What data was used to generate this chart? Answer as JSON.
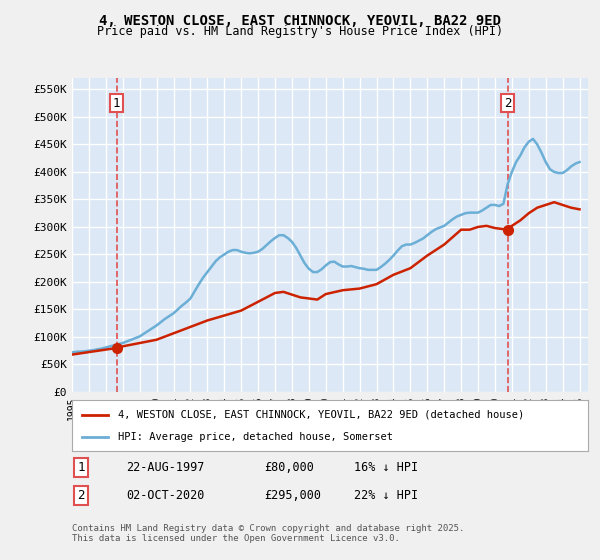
{
  "title": "4, WESTON CLOSE, EAST CHINNOCK, YEOVIL, BA22 9ED",
  "subtitle": "Price paid vs. HM Land Registry's House Price Index (HPI)",
  "background_color": "#e8f0f8",
  "plot_bg_color": "#dce8f5",
  "grid_color": "#ffffff",
  "hpi_color": "#6baed6",
  "property_color": "#cc2200",
  "annotation_line_color": "#e05050",
  "ylabel_color": "#333333",
  "xlabel_color": "#333333",
  "ylim": [
    0,
    570000
  ],
  "yticks": [
    0,
    50000,
    100000,
    150000,
    200000,
    250000,
    300000,
    350000,
    400000,
    450000,
    500000,
    550000
  ],
  "ytick_labels": [
    "£0",
    "£50K",
    "£100K",
    "£150K",
    "£200K",
    "£250K",
    "£300K",
    "£350K",
    "£400K",
    "£450K",
    "£500K",
    "£550K"
  ],
  "xlim_start": 1995.3,
  "xlim_end": 2025.5,
  "xticks": [
    1995,
    1996,
    1997,
    1998,
    1999,
    2000,
    2001,
    2002,
    2003,
    2004,
    2005,
    2006,
    2007,
    2008,
    2009,
    2010,
    2011,
    2012,
    2013,
    2014,
    2015,
    2016,
    2017,
    2018,
    2019,
    2020,
    2021,
    2022,
    2023,
    2024,
    2025
  ],
  "purchase1_x": 1997.64,
  "purchase1_y": 80000,
  "purchase1_label": "1",
  "purchase2_x": 2020.75,
  "purchase2_y": 295000,
  "purchase2_label": "2",
  "legend_property": "4, WESTON CLOSE, EAST CHINNOCK, YEOVIL, BA22 9ED (detached house)",
  "legend_hpi": "HPI: Average price, detached house, Somerset",
  "note1_label": "1",
  "note1_date": "22-AUG-1997",
  "note1_price": "£80,000",
  "note1_hpi": "16% ↓ HPI",
  "note2_label": "2",
  "note2_date": "02-OCT-2020",
  "note2_price": "£295,000",
  "note2_hpi": "22% ↓ HPI",
  "copyright": "Contains HM Land Registry data © Crown copyright and database right 2025.\nThis data is licensed under the Open Government Licence v3.0.",
  "hpi_data": {
    "x": [
      1995.0,
      1995.25,
      1995.5,
      1995.75,
      1996.0,
      1996.25,
      1996.5,
      1996.75,
      1997.0,
      1997.25,
      1997.5,
      1997.75,
      1998.0,
      1998.25,
      1998.5,
      1998.75,
      1999.0,
      1999.25,
      1999.5,
      1999.75,
      2000.0,
      2000.25,
      2000.5,
      2000.75,
      2001.0,
      2001.25,
      2001.5,
      2001.75,
      2002.0,
      2002.25,
      2002.5,
      2002.75,
      2003.0,
      2003.25,
      2003.5,
      2003.75,
      2004.0,
      2004.25,
      2004.5,
      2004.75,
      2005.0,
      2005.25,
      2005.5,
      2005.75,
      2006.0,
      2006.25,
      2006.5,
      2006.75,
      2007.0,
      2007.25,
      2007.5,
      2007.75,
      2008.0,
      2008.25,
      2008.5,
      2008.75,
      2009.0,
      2009.25,
      2009.5,
      2009.75,
      2010.0,
      2010.25,
      2010.5,
      2010.75,
      2011.0,
      2011.25,
      2011.5,
      2011.75,
      2012.0,
      2012.25,
      2012.5,
      2012.75,
      2013.0,
      2013.25,
      2013.5,
      2013.75,
      2014.0,
      2014.25,
      2014.5,
      2014.75,
      2015.0,
      2015.25,
      2015.5,
      2015.75,
      2016.0,
      2016.25,
      2016.5,
      2016.75,
      2017.0,
      2017.25,
      2017.5,
      2017.75,
      2018.0,
      2018.25,
      2018.5,
      2018.75,
      2019.0,
      2019.25,
      2019.5,
      2019.75,
      2020.0,
      2020.25,
      2020.5,
      2020.75,
      2021.0,
      2021.25,
      2021.5,
      2021.75,
      2022.0,
      2022.25,
      2022.5,
      2022.75,
      2023.0,
      2023.25,
      2023.5,
      2023.75,
      2024.0,
      2024.25,
      2024.5,
      2024.75,
      2025.0
    ],
    "y": [
      72000,
      73000,
      73500,
      74000,
      75000,
      76000,
      77500,
      79000,
      81000,
      83000,
      85000,
      87000,
      89000,
      92000,
      95000,
      98000,
      101000,
      106000,
      111000,
      116000,
      121000,
      127000,
      133000,
      138000,
      143000,
      150000,
      157000,
      163000,
      170000,
      183000,
      196000,
      208000,
      218000,
      228000,
      238000,
      245000,
      250000,
      255000,
      258000,
      258000,
      255000,
      253000,
      252000,
      253000,
      255000,
      260000,
      267000,
      274000,
      280000,
      285000,
      285000,
      280000,
      273000,
      262000,
      248000,
      234000,
      224000,
      218000,
      218000,
      223000,
      230000,
      236000,
      237000,
      232000,
      228000,
      228000,
      229000,
      227000,
      225000,
      224000,
      222000,
      222000,
      222000,
      227000,
      233000,
      240000,
      248000,
      257000,
      265000,
      268000,
      268000,
      271000,
      275000,
      279000,
      285000,
      291000,
      296000,
      299000,
      302000,
      308000,
      314000,
      319000,
      322000,
      325000,
      326000,
      326000,
      326000,
      330000,
      335000,
      340000,
      340000,
      338000,
      342000,
      378000,
      400000,
      418000,
      430000,
      445000,
      455000,
      460000,
      450000,
      435000,
      418000,
      405000,
      400000,
      398000,
      398000,
      403000,
      410000,
      415000,
      418000
    ]
  },
  "property_data": {
    "x": [
      1997.64,
      2020.75
    ],
    "y": [
      80000,
      295000
    ]
  },
  "property_line_x": [
    1995.0,
    1997.64,
    1998.0,
    2000.0,
    2003.0,
    2005.0,
    2007.0,
    2007.5,
    2008.5,
    2009.5,
    2010.0,
    2011.0,
    2012.0,
    2013.0,
    2014.0,
    2015.0,
    2016.0,
    2017.0,
    2018.0,
    2018.5,
    2019.0,
    2019.5,
    2020.0,
    2020.75,
    2021.0,
    2021.5,
    2022.0,
    2022.5,
    2023.0,
    2023.5,
    2024.0,
    2024.5,
    2025.0
  ],
  "property_line_y": [
    68000,
    80000,
    83000,
    95000,
    130000,
    148000,
    180000,
    182000,
    172000,
    168000,
    178000,
    185000,
    188000,
    196000,
    213000,
    225000,
    248000,
    268000,
    295000,
    295000,
    300000,
    302000,
    298000,
    295000,
    302000,
    312000,
    325000,
    335000,
    340000,
    345000,
    340000,
    335000,
    332000
  ]
}
